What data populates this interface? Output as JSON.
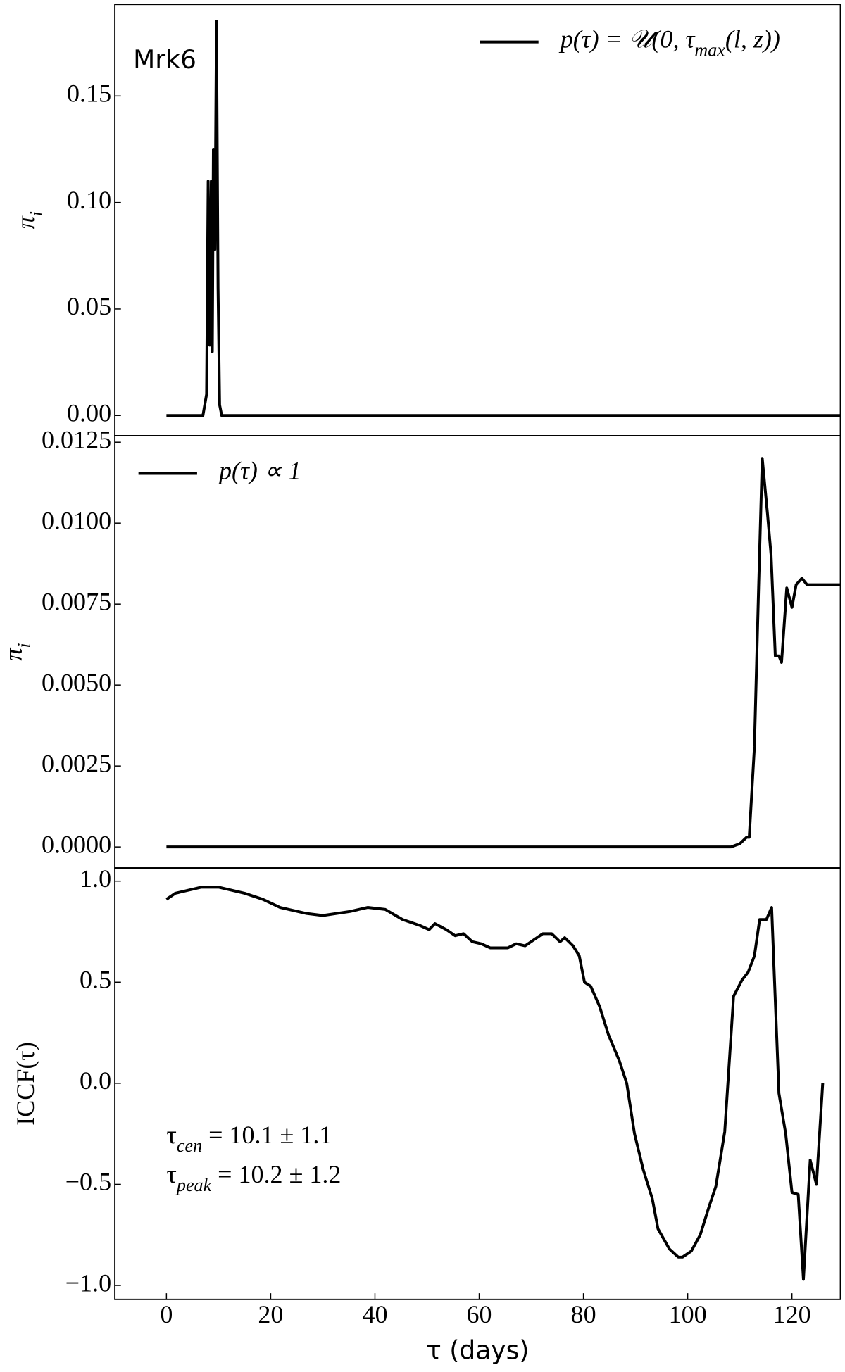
{
  "chart_data": [
    {
      "type": "line",
      "annotation": "Mrk6",
      "ylabel": [
        "π",
        "i"
      ],
      "legend": "upper right",
      "xlim": [
        -9.9,
        129.3
      ],
      "ylim": [
        -0.0095,
        0.193
      ],
      "yticks": [
        {
          "value": 0,
          "label": "0.00"
        },
        0.05,
        {
          "value": 0.1,
          "label": "0.10"
        },
        0.15
      ],
      "x": [
        0,
        7,
        7.7,
        8,
        8.3,
        8.6,
        8.8,
        9,
        9.3,
        9.6,
        9.9,
        10.2,
        10.6,
        129.3
      ],
      "series": [
        {
          "name": [
            "p(τ) = 𝒰(0, τ",
            "max",
            "(l, z))"
          ],
          "color": "#000000",
          "values": [
            0,
            0,
            0.01,
            0.11,
            0.033,
            0.11,
            0.03,
            0.125,
            0.078,
            0.185,
            0.06,
            0.005,
            0,
            0
          ]
        }
      ]
    },
    {
      "type": "line",
      "ylabel": [
        "π",
        "i"
      ],
      "legend": "upper left",
      "xlim": [
        -9.9,
        129.3
      ],
      "ylim": [
        -0.00065,
        0.0127
      ],
      "yticks": [
        {
          "value": 0,
          "label": "0.0000"
        },
        0.0025,
        {
          "value": 0.005,
          "label": "0.0050"
        },
        0.0075,
        {
          "value": 0.01,
          "label": "0.0100"
        },
        0.0125
      ],
      "x": [
        0,
        108.3,
        110,
        111.3,
        111.8,
        112.8,
        113.6,
        114.3,
        115.3,
        116,
        116.8,
        117.5,
        118,
        119,
        120,
        120.8,
        121.9,
        122.9,
        129.3
      ],
      "series": [
        {
          "name": [
            "p(τ) ∝ 1"
          ],
          "color": "#000000",
          "values": [
            0,
            0,
            0.0001,
            0.0003,
            0.0003,
            0.0031,
            0.008,
            0.012,
            0.0103,
            0.009,
            0.0059,
            0.0059,
            0.0057,
            0.008,
            0.0074,
            0.0081,
            0.0083,
            0.0081,
            0.0081
          ]
        }
      ]
    },
    {
      "type": "line",
      "ylabel": [
        "ICCF(τ)"
      ],
      "xlabel": "τ (days)",
      "xlim": [
        -9.9,
        129.3
      ],
      "ylim": [
        -1.069,
        1.065
      ],
      "xticks": [
        0,
        20,
        40,
        60,
        80,
        100,
        120
      ],
      "yticks": [
        {
          "value": -1,
          "label": "−1.0"
        },
        {
          "value": -0.5,
          "label": "−0.5"
        },
        {
          "value": 0,
          "label": "0.0"
        },
        0.5,
        {
          "value": 1,
          "label": "1.0"
        }
      ],
      "annotations": [
        [
          "τ",
          "cen",
          " = 10.1 ± 1.1"
        ],
        [
          "τ",
          "peak",
          " = 10.2 ± 1.2"
        ]
      ],
      "x": [
        0,
        1.7,
        6.7,
        10,
        15,
        18.5,
        21.8,
        26.9,
        30,
        35.2,
        38.6,
        42,
        45.3,
        48.7,
        50.4,
        51.5,
        53.7,
        55.4,
        57,
        58.7,
        60.4,
        62.1,
        65.5,
        67.1,
        68.8,
        70.5,
        72.2,
        73.9,
        75.5,
        76.4,
        78,
        79.2,
        80.2,
        81.4,
        83.1,
        84.8,
        86.9,
        88.3,
        89.8,
        91.5,
        93.2,
        94.3,
        96.5,
        98.2,
        99,
        100.7,
        102.4,
        104.1,
        105.4,
        107.1,
        108.8,
        110.4,
        111.6,
        112.8,
        113.8,
        115.1,
        116.1,
        117.5,
        118.8,
        120,
        121.2,
        122.2,
        123.5,
        124.7,
        125.9
      ],
      "series": [
        {
          "color": "#000000",
          "values": [
            0.91,
            0.94,
            0.97,
            0.97,
            0.94,
            0.91,
            0.87,
            0.84,
            0.83,
            0.85,
            0.87,
            0.86,
            0.81,
            0.78,
            0.76,
            0.79,
            0.76,
            0.73,
            0.74,
            0.7,
            0.69,
            0.67,
            0.67,
            0.69,
            0.68,
            0.71,
            0.74,
            0.74,
            0.7,
            0.72,
            0.68,
            0.63,
            0.5,
            0.48,
            0.38,
            0.24,
            0.11,
            0,
            -0.25,
            -0.43,
            -0.57,
            -0.72,
            -0.82,
            -0.86,
            -0.86,
            -0.83,
            -0.75,
            -0.61,
            -0.51,
            -0.24,
            0.43,
            0.51,
            0.55,
            0.63,
            0.81,
            0.81,
            0.87,
            -0.05,
            -0.25,
            -0.54,
            -0.55,
            -0.97,
            -0.38,
            -0.5,
            0
          ]
        }
      ]
    }
  ]
}
